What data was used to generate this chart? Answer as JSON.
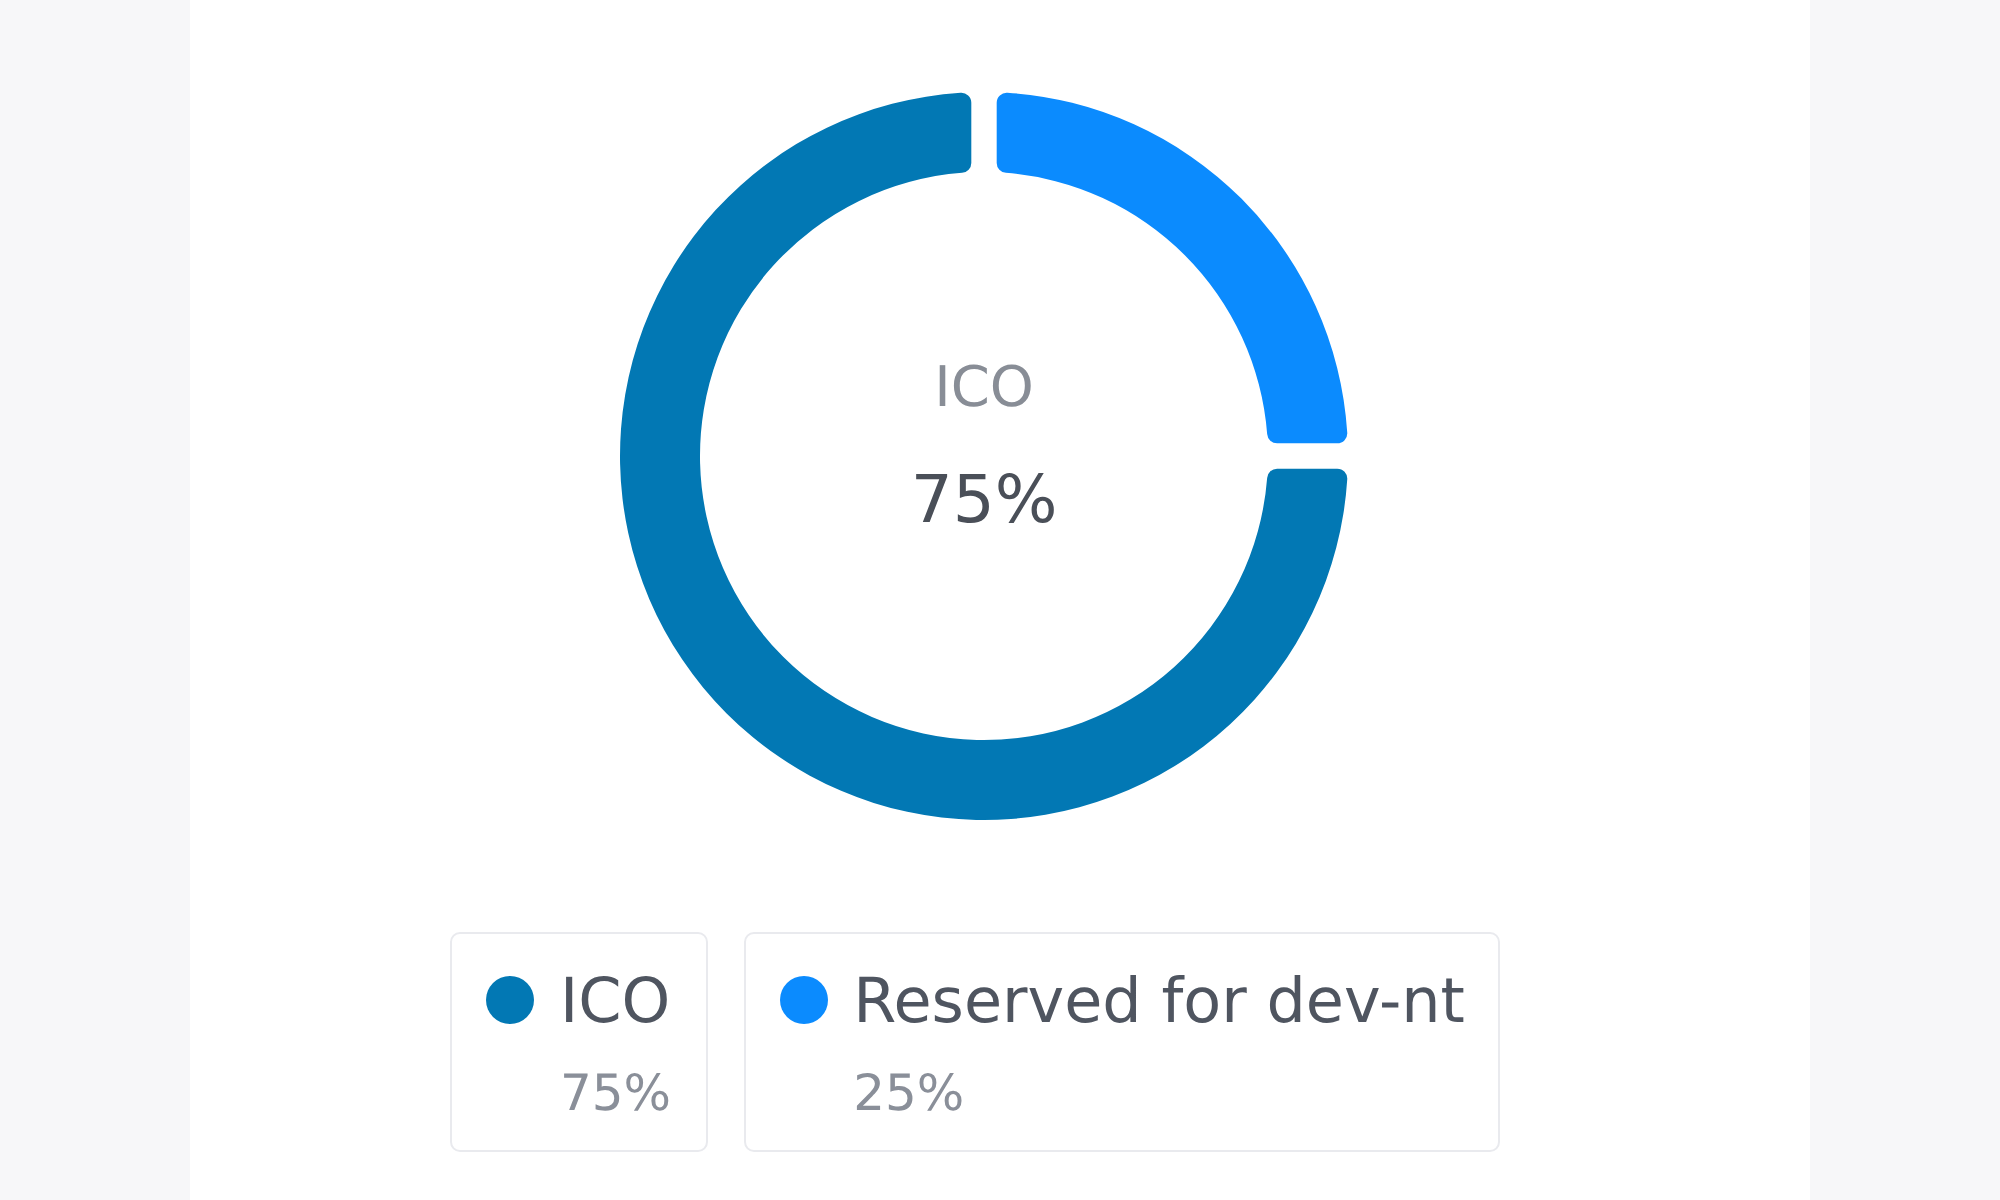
{
  "chart_data": {
    "type": "donut",
    "categories": [
      "ICO",
      "Reserved for dev-nt"
    ],
    "values": [
      75,
      25
    ],
    "colors": [
      "#0278b4",
      "#0b8bfe"
    ],
    "value_labels": [
      "75%",
      "25%"
    ],
    "legend": "bottom"
  }
}
